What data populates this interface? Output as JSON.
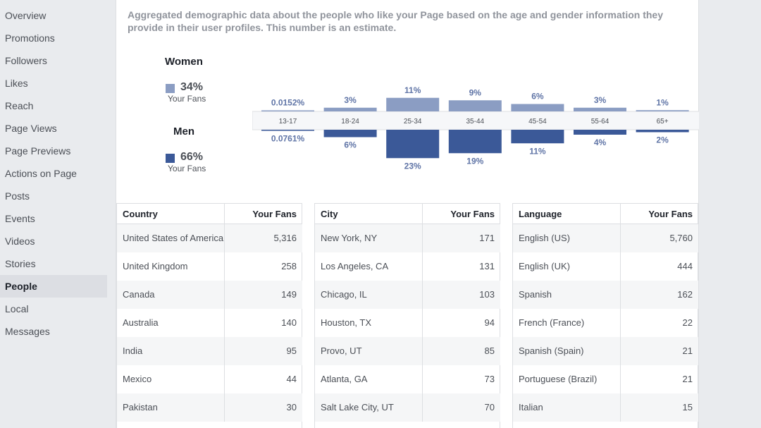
{
  "sidebar": {
    "items": [
      {
        "label": "Overview"
      },
      {
        "label": "Promotions"
      },
      {
        "label": "Followers"
      },
      {
        "label": "Likes"
      },
      {
        "label": "Reach"
      },
      {
        "label": "Page Views"
      },
      {
        "label": "Page Previews"
      },
      {
        "label": "Actions on Page"
      },
      {
        "label": "Posts"
      },
      {
        "label": "Events"
      },
      {
        "label": "Videos"
      },
      {
        "label": "Stories"
      },
      {
        "label": "People"
      },
      {
        "label": "Local"
      },
      {
        "label": "Messages"
      }
    ],
    "active": "People"
  },
  "main": {
    "description": "Aggregated demographic data about the people who like your Page based on the age and gender information they provide in their user profiles. This number is an estimate."
  },
  "legend": {
    "women": {
      "title": "Women",
      "pct": "34%",
      "sub": "Your Fans",
      "color": "#8b9dc3"
    },
    "men": {
      "title": "Men",
      "pct": "66%",
      "sub": "Your Fans",
      "color": "#3b5998"
    }
  },
  "chart_data": {
    "type": "bar",
    "categories": [
      "13-17",
      "18-24",
      "25-34",
      "35-44",
      "45-54",
      "55-64",
      "65+"
    ],
    "series": [
      {
        "name": "Women",
        "values": [
          0.0152,
          3,
          11,
          9,
          6,
          3,
          1
        ],
        "labels": [
          "0.0152%",
          "3%",
          "11%",
          "9%",
          "6%",
          "3%",
          "1%"
        ],
        "color": "#8b9dc3"
      },
      {
        "name": "Men",
        "values": [
          0.0761,
          6,
          23,
          19,
          11,
          4,
          2
        ],
        "labels": [
          "0.0761%",
          "6%",
          "23%",
          "19%",
          "11%",
          "4%",
          "2%"
        ],
        "color": "#3b5998"
      }
    ],
    "label_color": "#5f74a6"
  },
  "tables": {
    "country": {
      "headers": [
        "Country",
        "Your Fans"
      ],
      "rows": [
        [
          "United States of America",
          "5,316"
        ],
        [
          "United Kingdom",
          "258"
        ],
        [
          "Canada",
          "149"
        ],
        [
          "Australia",
          "140"
        ],
        [
          "India",
          "95"
        ],
        [
          "Mexico",
          "44"
        ],
        [
          "Pakistan",
          "30"
        ]
      ]
    },
    "city": {
      "headers": [
        "City",
        "Your Fans"
      ],
      "rows": [
        [
          "New York, NY",
          "171"
        ],
        [
          "Los Angeles, CA",
          "131"
        ],
        [
          "Chicago, IL",
          "103"
        ],
        [
          "Houston, TX",
          "94"
        ],
        [
          "Provo, UT",
          "85"
        ],
        [
          "Atlanta, GA",
          "73"
        ],
        [
          "Salt Lake City, UT",
          "70"
        ]
      ]
    },
    "language": {
      "headers": [
        "Language",
        "Your Fans"
      ],
      "rows": [
        [
          "English (US)",
          "5,760"
        ],
        [
          "English (UK)",
          "444"
        ],
        [
          "Spanish",
          "162"
        ],
        [
          "French (France)",
          "22"
        ],
        [
          "Spanish (Spain)",
          "21"
        ],
        [
          "Portuguese (Brazil)",
          "21"
        ],
        [
          "Italian",
          "15"
        ]
      ]
    }
  }
}
